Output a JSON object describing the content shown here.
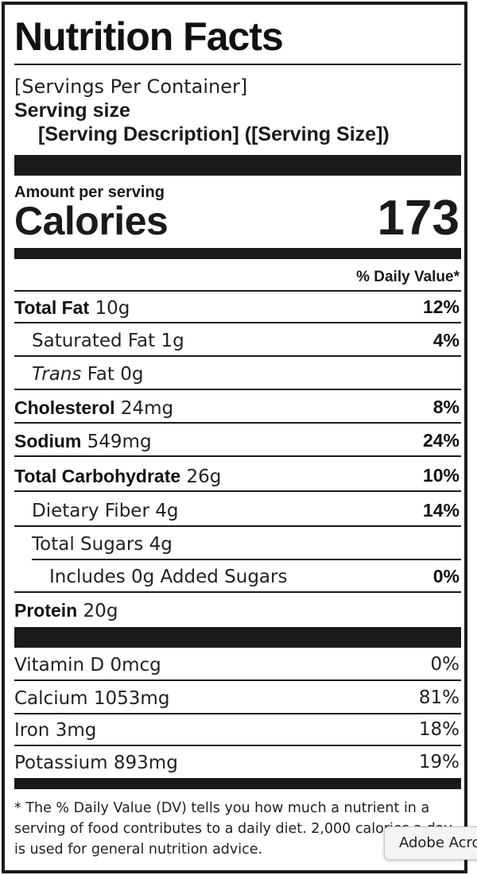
{
  "label": {
    "title": "Nutrition Facts",
    "servings_per_container": "[Servings Per Container]",
    "serving_size_label": "Serving size",
    "serving_description": "[Serving Description] ([Serving Size])",
    "amount_per_serving": "Amount per serving",
    "calories_label": "Calories",
    "calories_value": "173",
    "daily_value_header": "% Daily Value*",
    "nutrients": [
      {
        "name": "Total Fat",
        "amount": "10g",
        "dv": "12%"
      },
      {
        "name": "Saturated Fat",
        "amount": "1g",
        "dv": "4%"
      },
      {
        "name_italic": "Trans",
        "name": "Fat",
        "amount": "0g",
        "dv": ""
      },
      {
        "name": "Cholesterol",
        "amount": "24mg",
        "dv": "8%"
      },
      {
        "name": "Sodium",
        "amount": "549mg",
        "dv": "24%"
      },
      {
        "name": "Total Carbohydrate",
        "amount": "26g",
        "dv": "10%"
      },
      {
        "name": "Dietary Fiber",
        "amount": "4g",
        "dv": "14%"
      },
      {
        "name": "Total Sugars",
        "amount": "4g",
        "dv": ""
      },
      {
        "name": "Includes 0g Added Sugars",
        "amount": "",
        "dv": "0%"
      },
      {
        "name": "Protein",
        "amount": "20g",
        "dv": ""
      }
    ],
    "vitamins": [
      {
        "name": "Vitamin D",
        "amount": "0mcg",
        "dv": "0%"
      },
      {
        "name": "Calcium",
        "amount": "1053mg",
        "dv": "81%"
      },
      {
        "name": "Iron",
        "amount": "3mg",
        "dv": "18%"
      },
      {
        "name": "Potassium",
        "amount": "893mg",
        "dv": "19%"
      }
    ],
    "footnote": "* The % Daily Value (DV) tells you how much a nutrient in a serving of food contributes to a daily diet. 2,000 calories a day is used for general nutrition advice."
  },
  "tooltip": {
    "text": "Adobe Acrobat"
  }
}
